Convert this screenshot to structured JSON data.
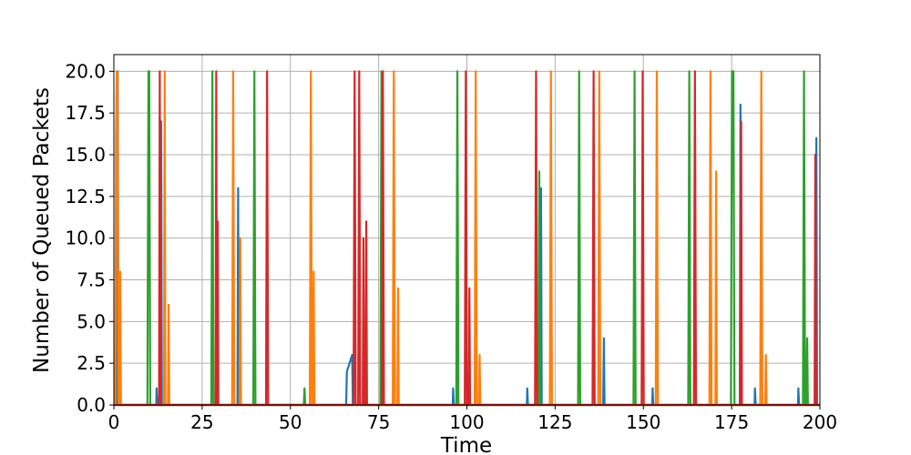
{
  "chart_data": {
    "type": "line",
    "title": "",
    "xlabel": "Time",
    "ylabel": "Number of Queued Packets",
    "xlim": [
      0,
      200
    ],
    "ylim": [
      0,
      21
    ],
    "xticks": [
      0,
      25,
      50,
      75,
      100,
      125,
      150,
      175,
      200
    ],
    "yticks": [
      0.0,
      2.5,
      5.0,
      7.5,
      10.0,
      12.5,
      15.0,
      17.5,
      20.0
    ],
    "xtick_labels": [
      "0",
      "25",
      "50",
      "75",
      "100",
      "125",
      "150",
      "175",
      "200"
    ],
    "ytick_labels": [
      "0.0",
      "2.5",
      "5.0",
      "7.5",
      "10.0",
      "12.5",
      "15.0",
      "17.5",
      "20.0"
    ],
    "grid": true,
    "legend": "none",
    "series": [
      {
        "color": "#1f77b4",
        "points": [
          [
            0,
            0
          ],
          [
            0.9,
            0
          ],
          [
            1.1,
            20
          ],
          [
            1.3,
            0
          ],
          [
            12,
            0
          ],
          [
            12.1,
            1
          ],
          [
            12.3,
            0
          ],
          [
            13.2,
            0
          ],
          [
            13.4,
            17
          ],
          [
            13.6,
            0
          ],
          [
            35,
            0
          ],
          [
            35.2,
            13
          ],
          [
            35.4,
            0
          ],
          [
            65.8,
            0
          ],
          [
            66,
            2
          ],
          [
            67.5,
            3
          ],
          [
            67.7,
            0
          ],
          [
            96,
            0
          ],
          [
            96.1,
            1
          ],
          [
            96.3,
            0
          ],
          [
            117,
            0
          ],
          [
            117.1,
            1
          ],
          [
            117.3,
            0
          ],
          [
            120.8,
            0
          ],
          [
            121,
            13
          ],
          [
            121.2,
            0
          ],
          [
            138.6,
            0
          ],
          [
            138.8,
            4
          ],
          [
            139,
            0
          ],
          [
            152.5,
            0
          ],
          [
            152.6,
            1
          ],
          [
            152.8,
            0
          ],
          [
            177.3,
            0
          ],
          [
            177.5,
            18
          ],
          [
            177.7,
            0
          ],
          [
            181.5,
            0
          ],
          [
            181.6,
            1
          ],
          [
            181.8,
            0
          ],
          [
            193.8,
            0
          ],
          [
            193.9,
            1
          ],
          [
            194.1,
            0
          ],
          [
            198.8,
            0
          ],
          [
            199,
            16
          ],
          [
            199.2,
            0
          ],
          [
            200,
            0
          ]
        ]
      },
      {
        "color": "#2ca02c",
        "points": [
          [
            0,
            0
          ],
          [
            9.5,
            0
          ],
          [
            9.8,
            20
          ],
          [
            10,
            20
          ],
          [
            10.3,
            0
          ],
          [
            27.6,
            0
          ],
          [
            27.9,
            20
          ],
          [
            28.2,
            0
          ],
          [
            39.5,
            0
          ],
          [
            39.8,
            20
          ],
          [
            40.1,
            0
          ],
          [
            53.8,
            0
          ],
          [
            54,
            1
          ],
          [
            54.2,
            0
          ],
          [
            75.5,
            0
          ],
          [
            75.8,
            20
          ],
          [
            76.1,
            0
          ],
          [
            97,
            0
          ],
          [
            97.3,
            20
          ],
          [
            97.6,
            0
          ],
          [
            120.3,
            0
          ],
          [
            120.5,
            14
          ],
          [
            120.7,
            0
          ],
          [
            131.5,
            0
          ],
          [
            131.8,
            20
          ],
          [
            132.1,
            0
          ],
          [
            147.2,
            0
          ],
          [
            147.5,
            20
          ],
          [
            147.8,
            0
          ],
          [
            162.7,
            0
          ],
          [
            163,
            20
          ],
          [
            163.3,
            0
          ],
          [
            174.8,
            0
          ],
          [
            175.1,
            20
          ],
          [
            175.5,
            20
          ],
          [
            175.8,
            0
          ],
          [
            195.2,
            0
          ],
          [
            195.5,
            20
          ],
          [
            195.8,
            0
          ],
          [
            196.2,
            0
          ],
          [
            196.4,
            4
          ],
          [
            196.6,
            0
          ],
          [
            200,
            0
          ]
        ]
      },
      {
        "color": "#ff7f0e",
        "points": [
          [
            0,
            0
          ],
          [
            0.4,
            0
          ],
          [
            0.6,
            16
          ],
          [
            0.8,
            20
          ],
          [
            1.0,
            20
          ],
          [
            1.3,
            0
          ],
          [
            1.6,
            0
          ],
          [
            1.8,
            8
          ],
          [
            2.0,
            0
          ],
          [
            14.2,
            0
          ],
          [
            14.4,
            20
          ],
          [
            14.6,
            0
          ],
          [
            15.3,
            0
          ],
          [
            15.5,
            6
          ],
          [
            15.7,
            0
          ],
          [
            33.5,
            0
          ],
          [
            33.8,
            20
          ],
          [
            34.1,
            0
          ],
          [
            35.6,
            0
          ],
          [
            35.8,
            10
          ],
          [
            36.0,
            0
          ],
          [
            55.5,
            0
          ],
          [
            55.8,
            20
          ],
          [
            56.1,
            0
          ],
          [
            56.4,
            0
          ],
          [
            56.6,
            8
          ],
          [
            56.8,
            0
          ],
          [
            79,
            0
          ],
          [
            79.3,
            20
          ],
          [
            79.6,
            0
          ],
          [
            80.3,
            0
          ],
          [
            80.5,
            7
          ],
          [
            80.7,
            0
          ],
          [
            102.2,
            0
          ],
          [
            102.5,
            20
          ],
          [
            102.8,
            0
          ],
          [
            103.4,
            0
          ],
          [
            103.6,
            3
          ],
          [
            103.8,
            0
          ],
          [
            123.5,
            0
          ],
          [
            123.8,
            20
          ],
          [
            124.1,
            0
          ],
          [
            137.2,
            0
          ],
          [
            137.5,
            20
          ],
          [
            137.8,
            0
          ],
          [
            153.5,
            0
          ],
          [
            153.8,
            20
          ],
          [
            154.1,
            0
          ],
          [
            168.7,
            0
          ],
          [
            169,
            20
          ],
          [
            169.3,
            0
          ],
          [
            170.4,
            0
          ],
          [
            170.6,
            14
          ],
          [
            170.8,
            0
          ],
          [
            183.1,
            0
          ],
          [
            183.4,
            20
          ],
          [
            183.7,
            0
          ],
          [
            184.5,
            0
          ],
          [
            184.7,
            3
          ],
          [
            184.9,
            0
          ],
          [
            200,
            0
          ]
        ]
      },
      {
        "color": "#d62728",
        "points": [
          [
            0,
            0
          ],
          [
            12.8,
            0
          ],
          [
            13.0,
            20
          ],
          [
            13.2,
            0
          ],
          [
            28.8,
            0
          ],
          [
            29.0,
            20
          ],
          [
            29.2,
            0
          ],
          [
            29.4,
            11
          ],
          [
            29.6,
            0
          ],
          [
            43.1,
            0
          ],
          [
            43.4,
            20
          ],
          [
            43.7,
            0
          ],
          [
            67.9,
            0
          ],
          [
            68.2,
            20
          ],
          [
            68.5,
            0
          ],
          [
            69.2,
            0
          ],
          [
            69.5,
            20
          ],
          [
            69.8,
            0
          ],
          [
            70.5,
            0
          ],
          [
            70.7,
            10
          ],
          [
            70.9,
            0
          ],
          [
            71.3,
            0
          ],
          [
            71.5,
            11
          ],
          [
            71.7,
            0
          ],
          [
            75.9,
            0
          ],
          [
            76.2,
            20
          ],
          [
            76.5,
            0
          ],
          [
            99.4,
            0
          ],
          [
            99.7,
            20
          ],
          [
            100,
            0
          ],
          [
            100.5,
            0
          ],
          [
            100.7,
            7
          ],
          [
            100.9,
            0
          ],
          [
            119.3,
            0
          ],
          [
            119.6,
            20
          ],
          [
            119.9,
            0
          ],
          [
            135.6,
            0
          ],
          [
            135.9,
            20
          ],
          [
            136.2,
            0
          ],
          [
            149.5,
            0
          ],
          [
            149.8,
            20
          ],
          [
            150.1,
            0
          ],
          [
            164.3,
            0
          ],
          [
            164.6,
            20
          ],
          [
            164.9,
            0
          ],
          [
            177.5,
            0
          ],
          [
            177.7,
            17
          ],
          [
            177.9,
            0
          ],
          [
            198.5,
            0
          ],
          [
            198.7,
            15
          ],
          [
            198.9,
            0
          ],
          [
            200,
            0
          ]
        ]
      }
    ]
  }
}
